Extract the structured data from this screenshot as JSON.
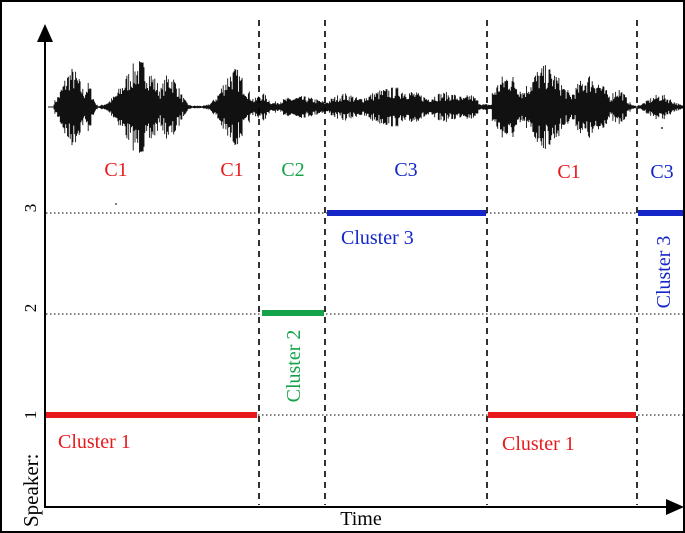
{
  "colors": {
    "cluster1": "#e8191c",
    "cluster2": "#15a34a",
    "cluster3": "#1426c8",
    "axis": "#000000"
  },
  "axes": {
    "x_label": "Time",
    "y_label": "Speaker:",
    "y_ticks": [
      "1",
      "2",
      "3"
    ]
  },
  "waveform_labels": [
    {
      "text": "C1",
      "cluster": 1
    },
    {
      "text": "C1",
      "cluster": 1
    },
    {
      "text": "C2",
      "cluster": 2
    },
    {
      "text": "C3",
      "cluster": 3
    },
    {
      "text": "C1",
      "cluster": 1
    },
    {
      "text": "C3",
      "cluster": 3
    }
  ],
  "segment_labels": [
    {
      "text": "Cluster 1",
      "cluster": 1,
      "orientation": "horizontal"
    },
    {
      "text": "Cluster 2",
      "cluster": 2,
      "orientation": "vertical"
    },
    {
      "text": "Cluster 3",
      "cluster": 3,
      "orientation": "horizontal"
    },
    {
      "text": "Cluster 1",
      "cluster": 1,
      "orientation": "horizontal"
    },
    {
      "text": "Cluster 3",
      "cluster": 3,
      "orientation": "vertical"
    }
  ],
  "segments": [
    {
      "cluster": 1,
      "speaker": 1,
      "start": 0,
      "end": 3
    },
    {
      "cluster": 2,
      "speaker": 2,
      "start": 3,
      "end": 4
    },
    {
      "cluster": 3,
      "speaker": 3,
      "start": 4,
      "end": 5
    },
    {
      "cluster": 1,
      "speaker": 1,
      "start": 5,
      "end": 6
    },
    {
      "cluster": 3,
      "speaker": 3,
      "start": 6,
      "end": 7
    }
  ]
}
